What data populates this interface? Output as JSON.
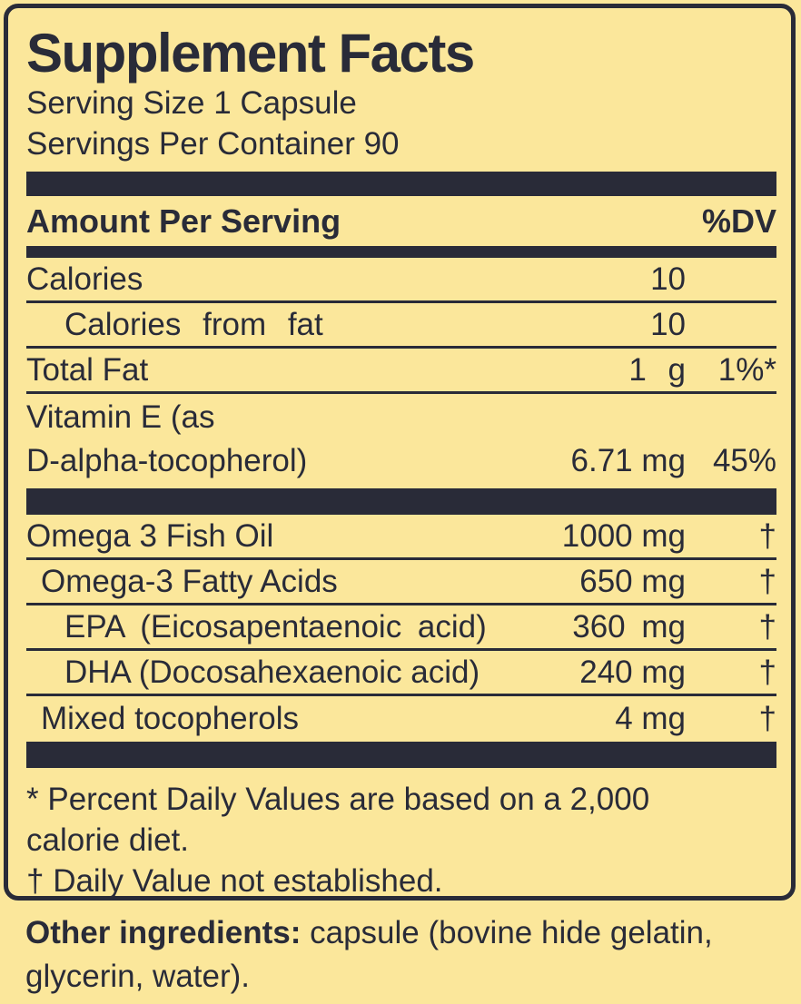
{
  "colors": {
    "background": "#FBE79B",
    "ink": "#292B38"
  },
  "title": "Supplement Facts",
  "serving": {
    "size": "Serving Size 1 Capsule",
    "per_container": "Servings Per Container 90"
  },
  "header": {
    "amount_label": "Amount Per Serving",
    "dv_label": "%DV"
  },
  "rows": [
    {
      "name": "Calories",
      "amount": "10",
      "dv": ""
    },
    {
      "name": "Calories from fat",
      "amount": "10",
      "dv": ""
    },
    {
      "name": "Total Fat",
      "amount": "1 g",
      "dv": "1%*"
    },
    {
      "name_line1": "Vitamin E (as",
      "name_line2": "D-alpha-tocopherol)",
      "amount": "6.71 mg",
      "dv": "45%"
    },
    {
      "name": "Omega 3 Fish Oil",
      "amount": "1000 mg",
      "dv": "†"
    },
    {
      "name": "Omega-3 Fatty Acids",
      "amount": "650 mg",
      "dv": "†"
    },
    {
      "name": "EPA (Eicosapentaenoic acid)",
      "amount": "360 mg",
      "dv": "†"
    },
    {
      "name": "DHA (Docosahexaenoic acid)",
      "amount": "240 mg",
      "dv": "†"
    },
    {
      "name": "Mixed tocopherols",
      "amount": "4 mg",
      "dv": "†"
    }
  ],
  "footnotes": [
    "* Percent Daily Values are based on a 2,000",
    "calorie diet.",
    "† Daily Value not established."
  ],
  "other_ingredients": {
    "label": "Other ingredients:",
    "line1_rest": " capsule (bovine hide gelatin,",
    "line2": "glycerin, water)."
  }
}
